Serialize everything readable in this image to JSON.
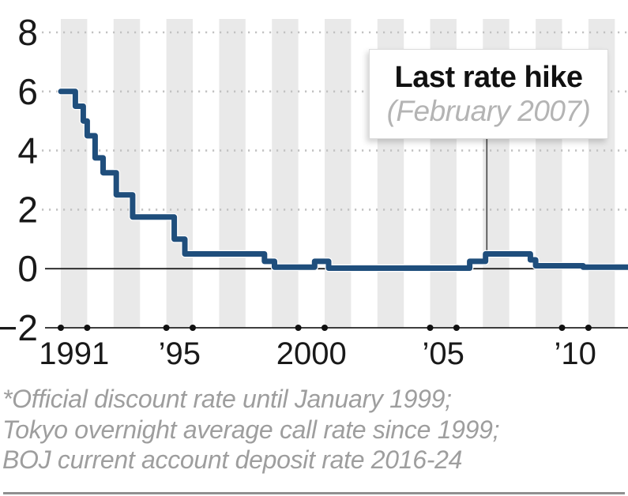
{
  "chart": {
    "annotation": {
      "title": "Last rate hike",
      "subtitle": "(February 2007)",
      "pointer_year": 2007.15,
      "pointer_value": 0.5
    },
    "footnote_lines": [
      "*Official discount rate until January 1999;",
      "Tokyo overnight average call rate since 1999;",
      "BOJ current account deposit rate 2016-24"
    ],
    "colors": {
      "line": "#1f4e7c",
      "line_casing": "#ffffff",
      "stripe": "#e9e9e9",
      "grid_dots": "#c2c2c2",
      "axis": "#222222",
      "tick_dot": "#111111",
      "label_text": "#191919",
      "annotation_title": "#111111",
      "annotation_subtitle": "#b4b4b4",
      "pointer_line": "#444444",
      "footnote_text": "#9e9e9e",
      "bottom_rule": "#8f8f8f"
    }
  },
  "chart_data": {
    "type": "line",
    "subtype": "step-after",
    "title": "",
    "xlabel": "",
    "ylabel": "",
    "xlim": [
      1990.4,
      2012.5
    ],
    "ylim": [
      -2,
      8
    ],
    "grid": "dotted-horizontal",
    "legend": "none",
    "steps": [
      [
        1991.0,
        6.0
      ],
      [
        1991.55,
        5.5
      ],
      [
        1991.85,
        5.0
      ],
      [
        1992.0,
        4.5
      ],
      [
        1992.3,
        3.75
      ],
      [
        1992.6,
        3.25
      ],
      [
        1993.1,
        2.5
      ],
      [
        1993.72,
        1.75
      ],
      [
        1995.3,
        1.0
      ],
      [
        1995.7,
        0.5
      ],
      [
        1998.72,
        0.25
      ],
      [
        1999.1,
        0.05
      ],
      [
        2000.62,
        0.25
      ],
      [
        2001.15,
        0.02
      ],
      [
        2006.5,
        0.25
      ],
      [
        2007.1,
        0.5
      ],
      [
        2008.8,
        0.3
      ],
      [
        2009.0,
        0.1
      ],
      [
        2010.8,
        0.05
      ]
    ],
    "yticks": [
      {
        "v": 8,
        "label": "8"
      },
      {
        "v": 6,
        "label": "6"
      },
      {
        "v": 4,
        "label": "4"
      },
      {
        "v": 2,
        "label": "2"
      },
      {
        "v": 0,
        "label": "0"
      },
      {
        "v": -2,
        "label": "−2"
      }
    ],
    "xticks": [
      {
        "v": 1991.5,
        "label": "1991"
      },
      {
        "v": 1995.5,
        "label": "’95"
      },
      {
        "v": 2000.5,
        "label": "2000"
      },
      {
        "v": 2005.5,
        "label": "’05"
      },
      {
        "v": 2010.5,
        "label": "’10"
      }
    ],
    "gridline_values": [
      8,
      6,
      4,
      2
    ],
    "zero_line_value": 0,
    "stripe_years": [
      1991,
      1993,
      1995,
      1997,
      1999,
      2001,
      2003,
      2005,
      2007,
      2009,
      2011
    ],
    "tick_dot_years": [
      1991,
      1992,
      1995,
      1996,
      2000,
      2001,
      2005,
      2006,
      2010,
      2011
    ]
  }
}
